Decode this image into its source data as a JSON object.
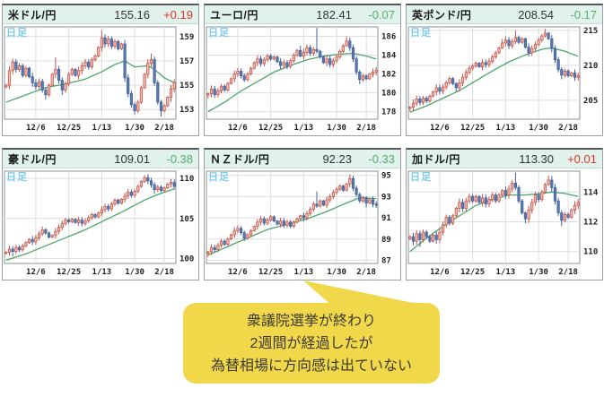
{
  "bubble": {
    "lines": [
      "衆議院選挙が終わり",
      "2週間が経過したが",
      "為替相場に方向感は出ていない"
    ],
    "bg_color": "#f1d74a"
  },
  "chart_data": {
    "type": "candlestick",
    "x_ticks": [
      "12/6",
      "12/25",
      "1/13",
      "1/30",
      "2/18"
    ],
    "tick_indices": [
      9,
      19,
      29,
      39,
      48
    ],
    "colors": {
      "up_change": "#dd3424",
      "down_change": "#53b06c",
      "candle_up_stroke": "#c4554b",
      "candle_up_fill": "#f5c0b5",
      "candle_down_stroke": "#44619c",
      "candle_down_fill": "#5a7bb0",
      "ma_line": "#4aa768",
      "grid_line": "#dddddd",
      "plot_border": "#8a9097",
      "header_bg": "#e1f2ed",
      "timeframe_label": "#79ccf0"
    },
    "panels": [
      {
        "name": "米ドル/円",
        "price": "155.16",
        "change": "+0.19",
        "direction": "up",
        "timeframe": "日足",
        "y_ticks": [
          159,
          157,
          155,
          153
        ],
        "ylim": [
          152.2,
          159.8
        ],
        "wick": 0.22,
        "closes": [
          155.0,
          156.2,
          156.9,
          156.3,
          156.6,
          155.8,
          156.4,
          155.7,
          155.2,
          154.9,
          155.3,
          154.6,
          154.2,
          155.0,
          155.9,
          156.3,
          155.4,
          154.6,
          155.1,
          155.9,
          156.3,
          155.8,
          156.2,
          156.6,
          156.9,
          156.5,
          157.1,
          157.4,
          158.1,
          158.9,
          158.4,
          158.8,
          158.2,
          158.6,
          158.0,
          158.4,
          155.6,
          154.3,
          153.4,
          152.9,
          153.6,
          154.8,
          155.9,
          156.8,
          157.1,
          155.2,
          153.6,
          152.9,
          153.3,
          154.0,
          154.7,
          155.2
        ],
        "ma": [
          [
            0,
            153.6
          ],
          [
            6,
            154.2
          ],
          [
            12,
            154.8
          ],
          [
            18,
            155.1
          ],
          [
            24,
            155.5
          ],
          [
            29,
            156.1
          ],
          [
            33,
            156.7
          ],
          [
            36,
            157.0
          ],
          [
            39,
            156.5
          ],
          [
            43,
            156.6
          ],
          [
            45,
            156.3
          ],
          [
            48,
            155.6
          ],
          [
            51,
            155.2
          ]
        ],
        "high_marks": [
          [
            15,
            157.3
          ],
          [
            29,
            159.5
          ],
          [
            44,
            157.6
          ]
        ],
        "low_marks": [
          [
            12,
            153.8
          ],
          [
            17,
            154.2
          ],
          [
            39,
            152.6
          ],
          [
            47,
            152.4
          ]
        ]
      },
      {
        "name": "ユーロ/円",
        "price": "182.41",
        "change": "-0.07",
        "direction": "down",
        "timeframe": "日足",
        "y_ticks": [
          186,
          184,
          182,
          180,
          178
        ],
        "ylim": [
          177.2,
          187.0
        ],
        "wick": 0.25,
        "closes": [
          179.9,
          180.4,
          179.8,
          180.2,
          180.7,
          180.3,
          181.0,
          181.5,
          182.0,
          182.3,
          181.8,
          181.4,
          182.0,
          182.6,
          183.2,
          183.6,
          183.1,
          183.5,
          183.9,
          183.6,
          183.8,
          183.3,
          182.9,
          183.2,
          182.8,
          183.4,
          184.0,
          184.5,
          183.9,
          184.3,
          184.8,
          184.2,
          184.6,
          184.4,
          183.8,
          183.2,
          183.6,
          183.0,
          183.4,
          183.8,
          184.4,
          185.0,
          185.5,
          184.8,
          183.6,
          182.2,
          181.4,
          181.8,
          181.5,
          182.0,
          182.2,
          182.4
        ],
        "ma": [
          [
            0,
            178.0
          ],
          [
            5,
            179.0
          ],
          [
            10,
            180.2
          ],
          [
            15,
            181.2
          ],
          [
            20,
            182.2
          ],
          [
            25,
            182.9
          ],
          [
            30,
            183.5
          ],
          [
            35,
            183.9
          ],
          [
            40,
            184.1
          ],
          [
            44,
            184.2
          ],
          [
            48,
            183.9
          ],
          [
            51,
            183.6
          ]
        ],
        "high_marks": [
          [
            28,
            185.0
          ],
          [
            33,
            186.9
          ],
          [
            42,
            186.0
          ]
        ],
        "low_marks": [
          [
            0,
            179.4
          ],
          [
            46,
            180.9
          ]
        ]
      },
      {
        "name": "英ポンド/円",
        "price": "208.54",
        "change": "-0.17",
        "direction": "down",
        "timeframe": "日足",
        "y_ticks": [
          215,
          210,
          205
        ],
        "ylim": [
          202.3,
          215.5
        ],
        "wick": 0.35,
        "closes": [
          204.0,
          204.6,
          205.2,
          204.7,
          205.3,
          204.9,
          205.6,
          206.2,
          206.8,
          206.3,
          206.9,
          207.5,
          208.1,
          207.4,
          206.8,
          207.5,
          208.3,
          209.0,
          209.6,
          209.9,
          210.3,
          209.8,
          210.4,
          210.1,
          210.6,
          211.2,
          211.8,
          212.5,
          213.2,
          213.6,
          212.8,
          213.4,
          214.0,
          213.3,
          213.8,
          212.6,
          211.8,
          212.4,
          213.0,
          213.6,
          214.2,
          214.6,
          213.8,
          212.4,
          210.8,
          209.4,
          208.6,
          209.2,
          208.5,
          208.9,
          208.3,
          208.5
        ],
        "ma": [
          [
            0,
            203.3
          ],
          [
            5,
            204.2
          ],
          [
            10,
            205.3
          ],
          [
            15,
            206.4
          ],
          [
            20,
            207.8
          ],
          [
            25,
            209.2
          ],
          [
            30,
            210.5
          ],
          [
            35,
            211.5
          ],
          [
            40,
            212.3
          ],
          [
            43,
            212.5
          ],
          [
            47,
            212.0
          ],
          [
            51,
            211.3
          ]
        ],
        "high_marks": [
          [
            28,
            213.8
          ],
          [
            32,
            215.0
          ],
          [
            41,
            215.2
          ]
        ],
        "low_marks": [
          [
            0,
            203.4
          ],
          [
            14,
            206.2
          ],
          [
            46,
            208.0
          ]
        ]
      },
      {
        "name": "豪ドル/円",
        "price": "109.01",
        "change": "-0.38",
        "direction": "down",
        "timeframe": "日足",
        "y_ticks": [
          110,
          105,
          100
        ],
        "ylim": [
          99.4,
          110.9
        ],
        "wick": 0.28,
        "closes": [
          100.8,
          101.2,
          100.9,
          101.4,
          101.1,
          101.6,
          102.0,
          102.4,
          102.1,
          102.6,
          103.1,
          103.6,
          103.2,
          102.7,
          102.9,
          103.4,
          103.9,
          104.4,
          104.8,
          104.6,
          104.9,
          104.5,
          104.8,
          104.4,
          104.7,
          105.1,
          105.5,
          105.2,
          105.7,
          106.1,
          106.5,
          106.2,
          106.8,
          107.3,
          106.9,
          107.4,
          107.8,
          108.3,
          107.9,
          108.4,
          109.0,
          109.6,
          110.1,
          109.7,
          109.2,
          108.6,
          108.9,
          108.5,
          108.8,
          109.3,
          109.5,
          109.0
        ],
        "ma": [
          [
            0,
            99.8
          ],
          [
            6,
            100.6
          ],
          [
            12,
            101.6
          ],
          [
            18,
            102.6
          ],
          [
            24,
            103.6
          ],
          [
            30,
            104.8
          ],
          [
            36,
            106.0
          ],
          [
            42,
            107.3
          ],
          [
            46,
            108.0
          ],
          [
            51,
            108.7
          ]
        ],
        "high_marks": [
          [
            11,
            104.0
          ],
          [
            42,
            110.4
          ]
        ],
        "low_marks": [
          [
            2,
            100.3
          ],
          [
            45,
            108.1
          ]
        ]
      },
      {
        "name": "ＮＺドル/円",
        "price": "92.23",
        "change": "-0.33",
        "direction": "down",
        "timeframe": "日足",
        "y_ticks": [
          95,
          93,
          91,
          89,
          87
        ],
        "ylim": [
          86.7,
          95.4
        ],
        "wick": 0.2,
        "closes": [
          87.8,
          88.2,
          88.0,
          88.4,
          88.8,
          88.5,
          89.0,
          89.4,
          89.8,
          90.0,
          89.6,
          89.1,
          89.4,
          89.8,
          90.2,
          90.6,
          90.9,
          90.5,
          90.8,
          91.1,
          90.7,
          90.4,
          90.7,
          90.3,
          90.6,
          90.2,
          90.6,
          90.9,
          91.2,
          91.0,
          91.4,
          91.8,
          92.3,
          92.1,
          92.6,
          92.2,
          92.7,
          93.0,
          93.4,
          93.7,
          94.0,
          93.6,
          94.2,
          94.7,
          93.8,
          93.2,
          92.6,
          92.9,
          92.4,
          92.7,
          92.3,
          92.2
        ],
        "ma": [
          [
            0,
            87.5
          ],
          [
            6,
            88.3
          ],
          [
            12,
            89.1
          ],
          [
            18,
            89.9
          ],
          [
            24,
            90.4
          ],
          [
            30,
            90.9
          ],
          [
            36,
            91.6
          ],
          [
            42,
            92.4
          ],
          [
            46,
            92.9
          ],
          [
            51,
            92.8
          ]
        ],
        "high_marks": [
          [
            9,
            90.3
          ],
          [
            33,
            93.5
          ],
          [
            43,
            95.1
          ]
        ],
        "low_marks": [
          [
            0,
            87.3
          ],
          [
            11,
            88.8
          ],
          [
            48,
            92.0
          ]
        ]
      },
      {
        "name": "加ドル/円",
        "price": "113.30",
        "change": "+0.01",
        "direction": "up",
        "timeframe": "日足",
        "y_ticks": [
          114,
          112,
          110
        ],
        "ylim": [
          109.2,
          115.4
        ],
        "wick": 0.18,
        "closes": [
          111.0,
          110.7,
          111.2,
          110.8,
          111.3,
          111.0,
          110.7,
          111.1,
          110.8,
          111.3,
          111.8,
          112.3,
          111.9,
          112.4,
          112.9,
          113.3,
          112.9,
          113.4,
          113.7,
          113.4,
          113.7,
          113.3,
          113.6,
          113.2,
          113.5,
          113.8,
          113.4,
          113.8,
          114.1,
          113.8,
          114.2,
          114.6,
          114.3,
          113.4,
          112.6,
          112.2,
          112.8,
          113.3,
          113.8,
          113.5,
          114.0,
          114.5,
          114.8,
          114.3,
          113.4,
          112.6,
          112.1,
          112.5,
          112.3,
          112.8,
          113.1,
          113.3
        ],
        "ma": [
          [
            0,
            110.0
          ],
          [
            5,
            110.9
          ],
          [
            10,
            111.7
          ],
          [
            15,
            112.4
          ],
          [
            20,
            113.1
          ],
          [
            25,
            113.5
          ],
          [
            30,
            113.8
          ],
          [
            35,
            113.8
          ],
          [
            40,
            113.9
          ],
          [
            43,
            114.0
          ],
          [
            47,
            113.9
          ],
          [
            51,
            113.7
          ]
        ],
        "high_marks": [
          [
            32,
            115.3
          ],
          [
            42,
            115.1
          ]
        ],
        "low_marks": [
          [
            3,
            110.3
          ],
          [
            35,
            111.9
          ],
          [
            46,
            111.7
          ]
        ]
      }
    ]
  }
}
